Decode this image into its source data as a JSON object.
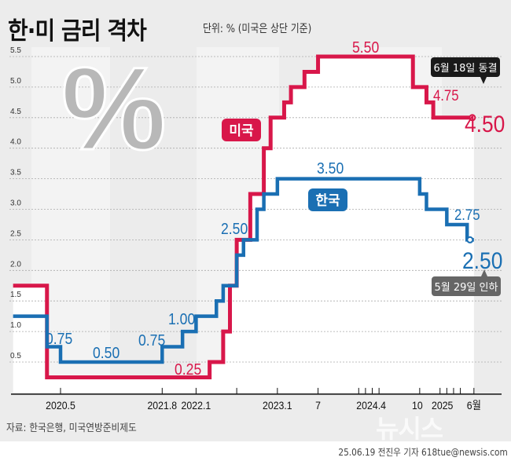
{
  "header": {
    "title": "한·미 금리 격차",
    "unit": "단위: % (미국은 상단 기준)"
  },
  "chart_data": {
    "type": "line",
    "step": true,
    "title": "한·미 금리 격차",
    "unit_note": "단위: % (미국은 상단 기준)",
    "ylim": [
      0,
      5.5
    ],
    "y_ticks": [
      "0.5",
      "1.0",
      "1.5",
      "2.0",
      "2.5",
      "3.0",
      "3.5",
      "4.0",
      "4.5",
      "5.0",
      "5.5"
    ],
    "grid": true,
    "x_ticks": [
      {
        "date": "2020-05",
        "label": "2020.5"
      },
      {
        "date": "2021-08",
        "label": "2021.8"
      },
      {
        "date": "2022-01",
        "label": "2022.1"
      },
      {
        "date": "2022-07",
        "label": ""
      },
      {
        "date": "2023-01",
        "label": "2023.1"
      },
      {
        "date": "2023-07",
        "label": "7"
      },
      {
        "date": "2024-01",
        "label": ""
      },
      {
        "date": "2024-02",
        "label": ""
      },
      {
        "date": "2024-03",
        "label": ""
      },
      {
        "date": "2024-04",
        "label": "2024.4"
      },
      {
        "date": "2024-10",
        "label": "10"
      },
      {
        "date": "2025-01",
        "label": "2025"
      },
      {
        "date": "2025-02",
        "label": ""
      },
      {
        "date": "2025-03",
        "label": ""
      },
      {
        "date": "2025-04",
        "label": ""
      },
      {
        "date": "2025-06",
        "label": "6월"
      }
    ],
    "series": [
      {
        "name": "미국",
        "color": "#d8174a",
        "steps": [
          [
            "2019-10",
            1.75
          ],
          [
            "2020-03",
            0.25
          ],
          [
            "2022-03",
            0.5
          ],
          [
            "2022-05",
            1.0
          ],
          [
            "2022-06",
            1.75
          ],
          [
            "2022-07",
            2.5
          ],
          [
            "2022-09",
            3.25
          ],
          [
            "2022-11",
            4.0
          ],
          [
            "2022-12",
            4.5
          ],
          [
            "2023-02",
            4.75
          ],
          [
            "2023-03",
            5.0
          ],
          [
            "2023-05",
            5.25
          ],
          [
            "2023-07",
            5.5
          ],
          [
            "2024-09",
            5.0
          ],
          [
            "2024-11",
            4.75
          ],
          [
            "2024-12",
            4.5
          ],
          [
            "2025-06",
            4.5
          ]
        ]
      },
      {
        "name": "한국",
        "color": "#1a6fb3",
        "steps": [
          [
            "2019-10",
            1.25
          ],
          [
            "2020-03",
            0.75
          ],
          [
            "2020-05",
            0.5
          ],
          [
            "2021-08",
            0.75
          ],
          [
            "2021-11",
            1.0
          ],
          [
            "2022-01",
            1.25
          ],
          [
            "2022-04",
            1.5
          ],
          [
            "2022-05",
            1.75
          ],
          [
            "2022-07",
            2.25
          ],
          [
            "2022-08",
            2.5
          ],
          [
            "2022-10",
            3.0
          ],
          [
            "2022-11",
            3.25
          ],
          [
            "2023-01",
            3.5
          ],
          [
            "2024-10",
            3.25
          ],
          [
            "2024-11",
            3.0
          ],
          [
            "2025-02",
            2.75
          ],
          [
            "2025-05",
            2.5
          ],
          [
            "2025-06",
            2.5
          ]
        ]
      }
    ],
    "data_labels": {
      "us": [
        "0.25",
        "5.50",
        "4.75",
        "4.50"
      ],
      "kr": [
        "0.75",
        "0.50",
        "0.75",
        "1.00",
        "2.50",
        "3.50",
        "2.75",
        "2.50"
      ]
    },
    "annotations": {
      "us": "6월 18일 동결",
      "kr": "5월 29일 인하"
    }
  },
  "footer": {
    "source": "자료: 한국은행, 미국연방준비제도",
    "credit": "25.06.19 전진우 기자 618tue@newsis.com",
    "logo": "뉴시스"
  }
}
